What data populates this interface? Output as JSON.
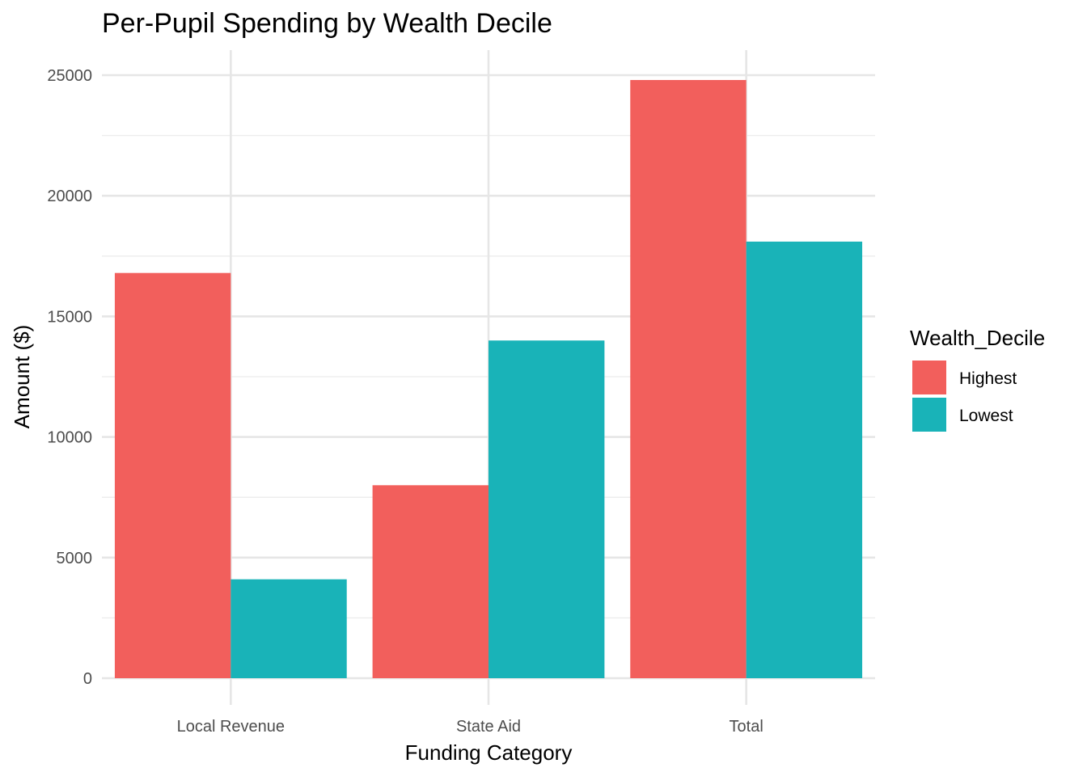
{
  "chart_data": {
    "type": "bar",
    "title": "Per-Pupil Spending by Wealth Decile",
    "xlabel": "Funding Category",
    "ylabel": "Amount ($)",
    "categories": [
      "Local Revenue",
      "State Aid",
      "Total"
    ],
    "series": [
      {
        "name": "Highest",
        "color": "#F25F5C",
        "values": [
          16800,
          8000,
          24800
        ]
      },
      {
        "name": "Lowest",
        "color": "#19B3B8",
        "values": [
          4100,
          14000,
          18100
        ]
      }
    ],
    "ylim": [
      0,
      25000
    ],
    "yticks": [
      0,
      5000,
      10000,
      15000,
      20000,
      25000
    ],
    "grid": true,
    "legend": {
      "title": "Wealth_Decile",
      "placement": "right"
    }
  }
}
